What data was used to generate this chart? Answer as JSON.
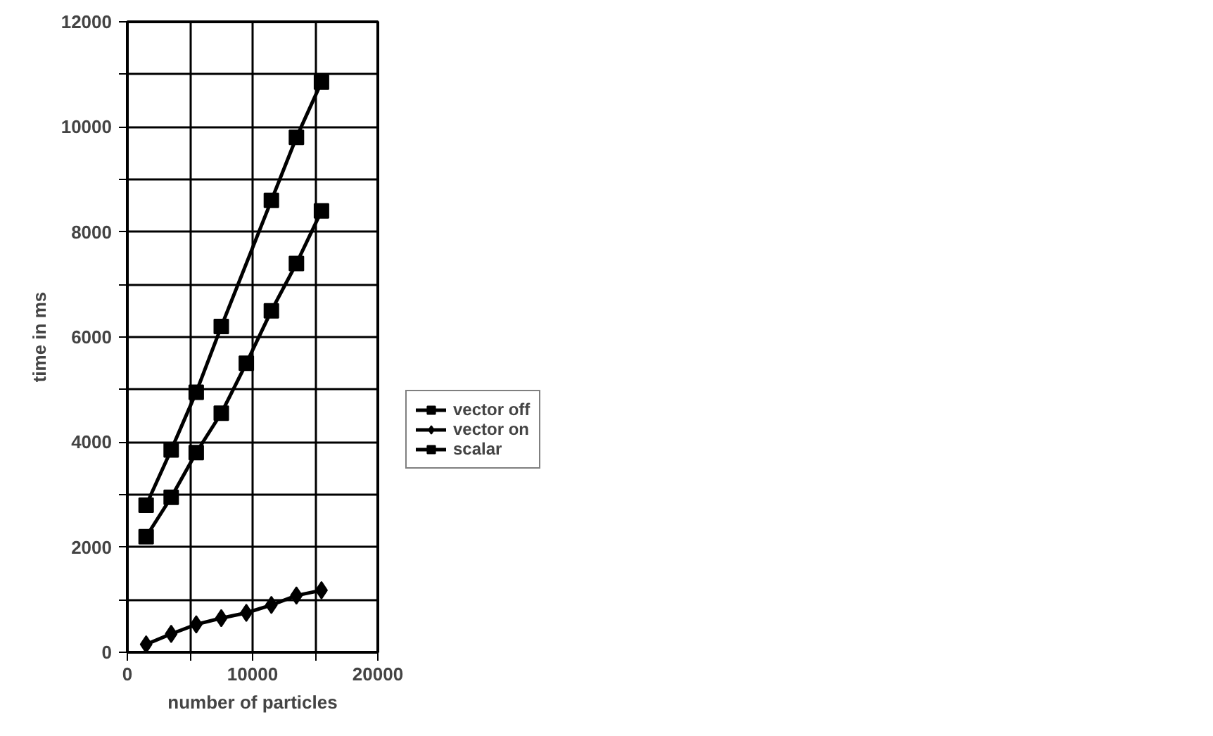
{
  "chart_data": {
    "type": "line",
    "xlabel": "number of particles",
    "ylabel": "time in ms",
    "xlim": [
      0,
      20000
    ],
    "ylim": [
      0,
      12000
    ],
    "xticks": [
      0,
      {
        "value": 5000,
        "label": null
      },
      10000,
      {
        "value": 15000,
        "label": null
      },
      20000
    ],
    "yticks": [
      0,
      {
        "value": 1000,
        "label": null
      },
      2000,
      {
        "value": 3000,
        "label": null
      },
      4000,
      {
        "value": 5000,
        "label": null
      },
      6000,
      {
        "value": 7000,
        "label": null
      },
      8000,
      {
        "value": 9000,
        "label": null
      },
      10000,
      {
        "value": 11000,
        "label": null
      },
      12000
    ],
    "grid": true,
    "legend": "right",
    "line_style": "solid",
    "series": [
      {
        "name": "vector off",
        "color": "#000000",
        "marker": "square",
        "x": [
          1500,
          3500,
          5500,
          7500,
          9500,
          11500,
          13500,
          15500
        ],
        "values": [
          2200,
          2950,
          3800,
          4550,
          5500,
          6500,
          7400,
          8400
        ]
      },
      {
        "name": "vector on",
        "color": "#000000",
        "marker": "diamond",
        "x": [
          1500,
          3500,
          5500,
          7500,
          9500,
          11500,
          13500,
          15500
        ],
        "values": [
          150,
          350,
          530,
          650,
          750,
          900,
          1080,
          1180
        ]
      },
      {
        "name": "scalar",
        "color": "#000000",
        "marker": "square",
        "x": [
          1500,
          3500,
          5500,
          7500,
          11500,
          13500,
          15500
        ],
        "values": [
          2800,
          3850,
          4950,
          6200,
          8600,
          9800,
          10850
        ]
      }
    ]
  }
}
